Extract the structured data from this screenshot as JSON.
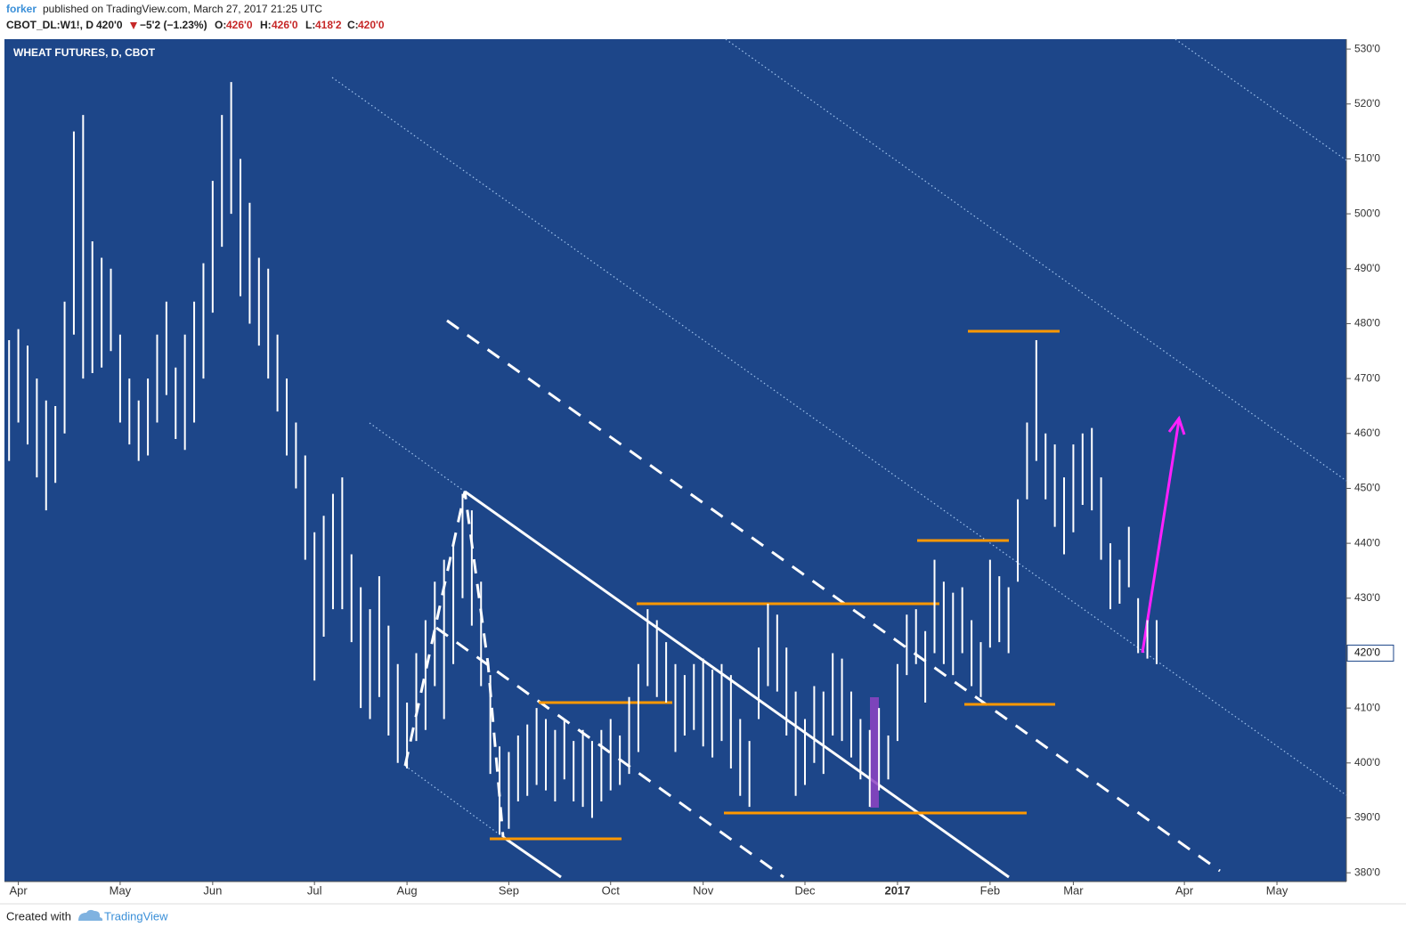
{
  "header": {
    "author": "forker",
    "published": "published on TradingView.com, March 27, 2017 21:25 UTC"
  },
  "symbol_line": {
    "symbol": "CBOT_DL:W1!, D",
    "last": "420'0",
    "change": "−5'2 (−1.23%)",
    "open_label": "O:",
    "open": "426'0",
    "high_label": "H:",
    "high": "426'0",
    "low_label": "L:",
    "low": "418'2",
    "close_label": "C:",
    "close": "420'0"
  },
  "footer": {
    "created": "Created with",
    "brand": "TradingView"
  },
  "chart_data": {
    "type": "ohlc",
    "title": "WHEAT FUTURES, D, CBOT",
    "color": "#ffffff",
    "categories": [
      null,
      "Apr",
      null,
      null,
      null,
      null,
      null,
      null,
      null,
      null,
      null,
      null,
      "May",
      null,
      null,
      null,
      null,
      null,
      null,
      null,
      null,
      null,
      "Jun",
      null,
      null,
      null,
      null,
      null,
      null,
      null,
      null,
      null,
      null,
      "Jul",
      null,
      null,
      null,
      null,
      null,
      null,
      null,
      null,
      null,
      "Aug",
      null,
      null,
      null,
      null,
      null,
      null,
      null,
      null,
      null,
      null,
      "Sep",
      null,
      null,
      null,
      null,
      null,
      null,
      null,
      null,
      null,
      null,
      "Oct",
      null,
      null,
      null,
      null,
      null,
      null,
      null,
      null,
      null,
      "Nov",
      null,
      null,
      null,
      null,
      null,
      null,
      null,
      null,
      null,
      null,
      "Dec",
      null,
      null,
      null,
      null,
      null,
      null,
      null,
      null,
      null,
      "2017",
      null,
      null,
      null,
      null,
      null,
      null,
      null,
      null,
      null,
      "Feb",
      null,
      null,
      null,
      null,
      null,
      null,
      null,
      null,
      "Mar",
      null,
      null,
      null,
      null,
      null,
      null,
      null,
      null,
      null,
      null,
      null,
      "Apr",
      null,
      null,
      null,
      null,
      null,
      null,
      null,
      null,
      null,
      "May",
      null,
      null,
      null,
      null,
      null,
      null,
      null
    ],
    "high": [
      477,
      479,
      476,
      470,
      466,
      465,
      484,
      515,
      518,
      495,
      492,
      490,
      478,
      470,
      466,
      470,
      478,
      484,
      472,
      478,
      484,
      491,
      506,
      518,
      524,
      510,
      502,
      492,
      490,
      478,
      470,
      462,
      456,
      442,
      445,
      449,
      452,
      438,
      432,
      428,
      434,
      425,
      418,
      411,
      420,
      426,
      433,
      437,
      440,
      449,
      446,
      433,
      416,
      403,
      402,
      405,
      407,
      410,
      408,
      406,
      408,
      404,
      406,
      404,
      406,
      408,
      405,
      412,
      418,
      428,
      426,
      422,
      418,
      416,
      418,
      419,
      417,
      418,
      416,
      408,
      404,
      421,
      429,
      427,
      421,
      413,
      408,
      414,
      413,
      420,
      419,
      413,
      408,
      406,
      410,
      405,
      418,
      427,
      428,
      424,
      437,
      433,
      431,
      432,
      426,
      422,
      437,
      434,
      432,
      448,
      462,
      477,
      460,
      458,
      452,
      458,
      460,
      461,
      452,
      440,
      437,
      443,
      430,
      426,
      426,
      null,
      null,
      null,
      null,
      null,
      null,
      null,
      null,
      null,
      null,
      null,
      null,
      null,
      null,
      null,
      null,
      null,
      null,
      null,
      null
    ],
    "low": [
      455,
      462,
      458,
      452,
      446,
      451,
      460,
      478,
      470,
      471,
      472,
      475,
      462,
      458,
      455,
      456,
      462,
      467,
      459,
      457,
      462,
      470,
      482,
      494,
      500,
      485,
      480,
      476,
      470,
      464,
      456,
      450,
      437,
      415,
      423,
      428,
      428,
      422,
      410,
      408,
      412,
      405,
      400,
      399,
      404,
      406,
      414,
      408,
      418,
      430,
      425,
      414,
      398,
      387,
      388,
      393,
      394,
      396,
      395,
      393,
      397,
      393,
      392,
      390,
      393,
      395,
      396,
      398,
      402,
      414,
      412,
      411,
      402,
      405,
      406,
      403,
      401,
      404,
      399,
      394,
      392,
      408,
      414,
      413,
      405,
      394,
      396,
      400,
      398,
      405,
      404,
      401,
      397,
      392,
      395,
      397,
      404,
      416,
      418,
      411,
      420,
      418,
      416,
      420,
      414,
      412,
      421,
      422,
      420,
      433,
      448,
      455,
      448,
      443,
      438,
      442,
      447,
      446,
      437,
      428,
      429,
      432,
      420,
      419,
      418,
      null,
      null,
      null,
      null,
      null,
      null,
      null,
      null,
      null,
      null,
      null,
      null,
      null,
      null,
      null,
      null,
      null,
      null,
      null,
      null
    ],
    "ylim": [
      378.4,
      531.8
    ],
    "yticks": [
      {
        "value": 380,
        "label": "380'0"
      },
      {
        "value": 390,
        "label": "390'0"
      },
      {
        "value": 400,
        "label": "400'0"
      },
      {
        "value": 410,
        "label": "410'0"
      },
      {
        "value": 420,
        "label": "420'0"
      },
      {
        "value": 430,
        "label": "430'0"
      },
      {
        "value": 440,
        "label": "440'0"
      },
      {
        "value": 450,
        "label": "450'0"
      },
      {
        "value": 460,
        "label": "460'0"
      },
      {
        "value": 470,
        "label": "470'0"
      },
      {
        "value": 480,
        "label": "480'0"
      },
      {
        "value": 490,
        "label": "490'0"
      },
      {
        "value": 500,
        "label": "500'0"
      },
      {
        "value": 510,
        "label": "510'0"
      },
      {
        "value": 520,
        "label": "520'0"
      },
      {
        "value": 530,
        "label": "530'0"
      }
    ],
    "last_price": {
      "value": 420,
      "label": "420'0"
    },
    "background": "#1d4689",
    "grid": false
  }
}
